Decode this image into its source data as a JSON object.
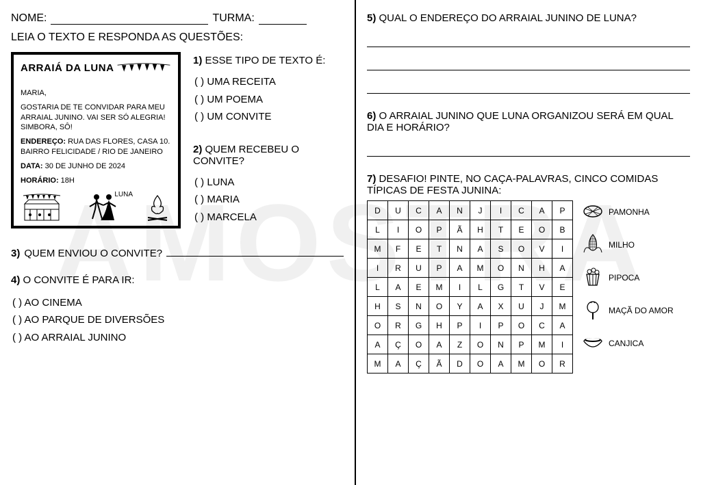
{
  "watermark": "AMOSTRA",
  "header": {
    "nome_label": "NOME:",
    "turma_label": "TURMA:",
    "nome_underline_width": 230,
    "turma_underline_width": 70
  },
  "instruction": "LEIA O TEXTO E RESPONDA AS QUESTÕES:",
  "invite": {
    "title": "ARRAIÁ DA LUNA",
    "greeting": "MARIA,",
    "body": "GOSTARIA DE TE CONVIDAR PARA MEU ARRAIAL  JUNINO. VAI SER SÓ ALEGRIA! SIMBORA, SÔ!",
    "endereco_label": "ENDEREÇO:",
    "endereco": "RUA DAS FLORES, CASA 10. BAIRRO FELICIDADE / RIO DE JANEIRO",
    "data_label": "DATA:",
    "data": "30 DE JUNHO DE 2024",
    "horario_label": "HORÁRIO:",
    "horario": "18H",
    "signature": "LUNA"
  },
  "q1": {
    "num": "1)",
    "text": "ESSE TIPO DE TEXTO É:",
    "options": [
      "UMA RECEITA",
      "UM POEMA",
      "UM CONVITE"
    ]
  },
  "q2": {
    "num": "2)",
    "text": "QUEM RECEBEU O CONVITE?",
    "options": [
      "LUNA",
      "MARIA",
      "MARCELA"
    ]
  },
  "q3": {
    "num": "3)",
    "text": "QUEM ENVIOU O CONVITE?"
  },
  "q4": {
    "num": "4)",
    "text": "O CONVITE É PARA IR:",
    "options": [
      "AO CINEMA",
      "AO PARQUE DE DIVERSÕES",
      "AO ARRAIAL JUNINO"
    ]
  },
  "q5": {
    "num": "5)",
    "text": "QUAL O ENDEREÇO DO ARRAIAL JUNINO DE LUNA?",
    "lines": 3
  },
  "q6": {
    "num": "6)",
    "text": "O ARRAIAL JUNINO QUE LUNA ORGANIZOU SERÁ EM QUAL DIA E HORÁRIO?",
    "lines": 1
  },
  "q7": {
    "num": "7)",
    "text": "DESAFIO! PINTE, NO CAÇA-PALAVRAS, CINCO COMIDAS TÍPICAS DE FESTA JUNINA:"
  },
  "wordsearch": {
    "rows": [
      [
        "D",
        "U",
        "C",
        "A",
        "N",
        "J",
        "I",
        "C",
        "A",
        "P"
      ],
      [
        "L",
        "I",
        "O",
        "P",
        "Ã",
        "H",
        "T",
        "E",
        "O",
        "B"
      ],
      [
        "M",
        "F",
        "E",
        "T",
        "N",
        "A",
        "S",
        "O",
        "V",
        "I"
      ],
      [
        "I",
        "R",
        "U",
        "P",
        "A",
        "M",
        "O",
        "N",
        "H",
        "A"
      ],
      [
        "L",
        "A",
        "E",
        "M",
        "I",
        "L",
        "G",
        "T",
        "V",
        "E"
      ],
      [
        "H",
        "S",
        "N",
        "O",
        "Y",
        "A",
        "X",
        "U",
        "J",
        "M"
      ],
      [
        "O",
        "R",
        "G",
        "H",
        "P",
        "I",
        "P",
        "O",
        "C",
        "A"
      ],
      [
        "A",
        "Ç",
        "O",
        "A",
        "Z",
        "O",
        "N",
        "P",
        "M",
        "I"
      ],
      [
        "M",
        "A",
        "Ç",
        "Ã",
        "D",
        "O",
        "A",
        "M",
        "O",
        "R"
      ]
    ]
  },
  "foods": [
    {
      "name": "PAMONHA",
      "icon": "pamonha"
    },
    {
      "name": "MILHO",
      "icon": "milho"
    },
    {
      "name": "PIPOCA",
      "icon": "pipoca"
    },
    {
      "name": "MAÇÃ DO AMOR",
      "icon": "maca"
    },
    {
      "name": "CANJICA",
      "icon": "canjica"
    }
  ],
  "paren_open": "(   )"
}
